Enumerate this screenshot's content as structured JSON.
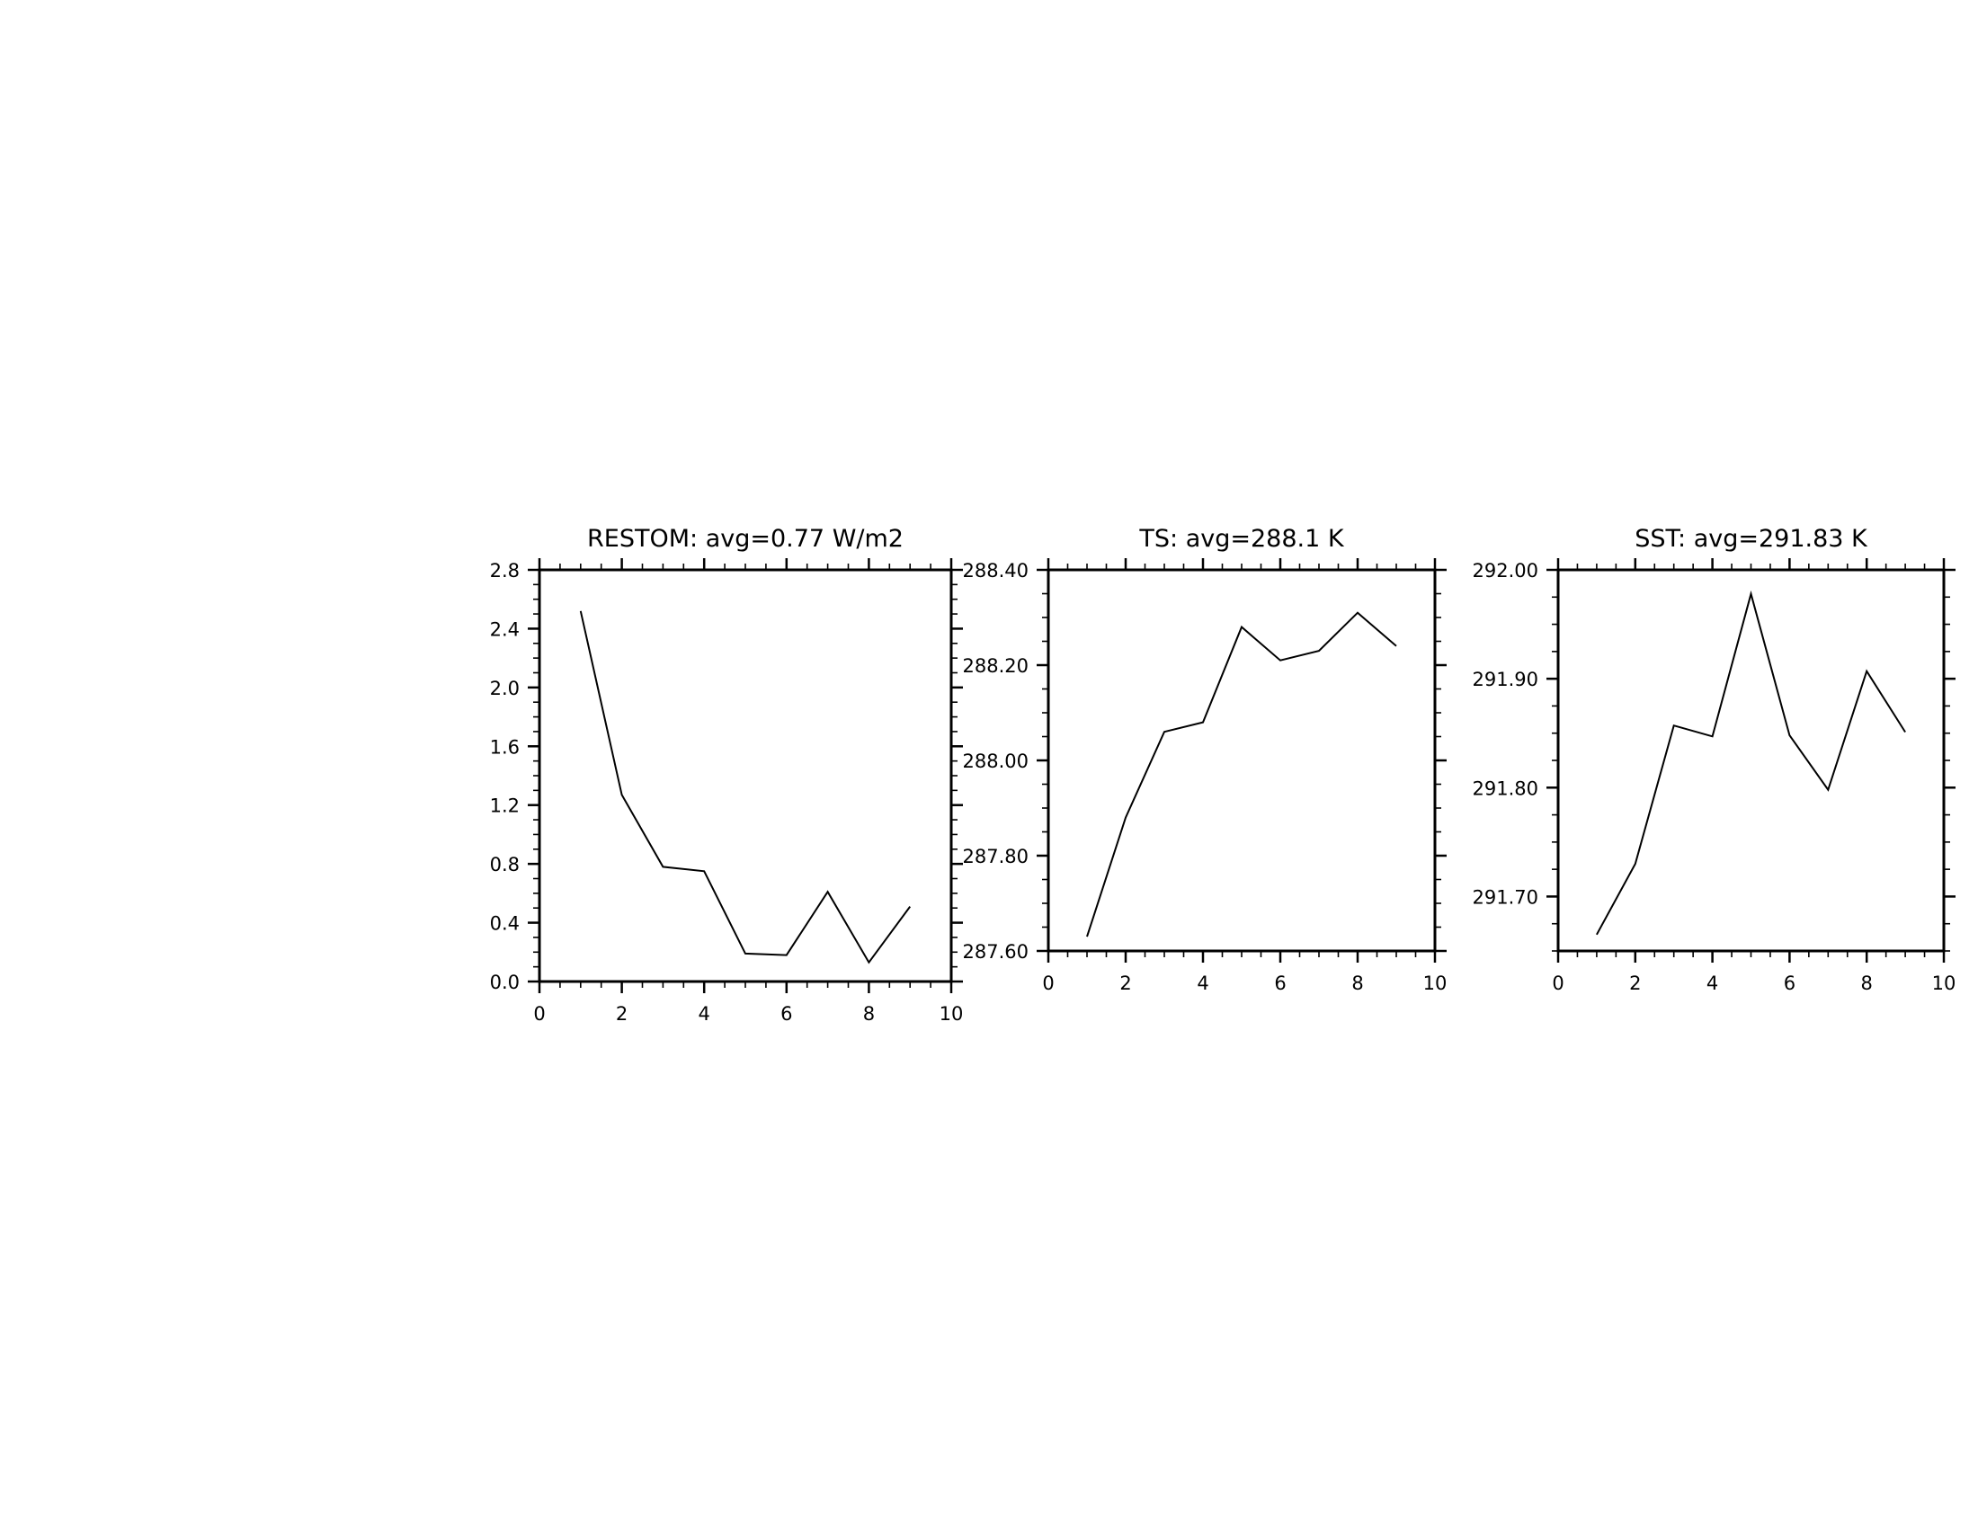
{
  "chart_data": [
    {
      "type": "line",
      "title": "RESTOM: avg=0.77 W/m2",
      "xlabel": "",
      "ylabel": "",
      "xlim": [
        0,
        10
      ],
      "ylim": [
        0.0,
        2.8
      ],
      "x_ticks": [
        0,
        2,
        4,
        6,
        8,
        10
      ],
      "x_tick_labels": [
        "0",
        "2",
        "4",
        "6",
        "8",
        "10"
      ],
      "y_ticks": [
        0.0,
        0.4,
        0.8,
        1.2,
        1.6,
        2.0,
        2.4,
        2.8
      ],
      "y_tick_labels": [
        "0.0",
        "0.4",
        "0.8",
        "1.2",
        "1.6",
        "2.0",
        "2.4",
        "2.8"
      ],
      "grid": false,
      "series": [
        {
          "x": [
            1,
            2,
            3,
            4,
            5,
            6,
            7,
            8,
            9
          ],
          "y": [
            2.52,
            1.27,
            0.78,
            0.75,
            0.19,
            0.18,
            0.61,
            0.13,
            0.51
          ]
        }
      ]
    },
    {
      "type": "line",
      "title": "TS: avg=288.1 K",
      "xlabel": "",
      "ylabel": "",
      "xlim": [
        0,
        10
      ],
      "ylim": [
        287.6,
        288.4
      ],
      "x_ticks": [
        0,
        2,
        4,
        6,
        8,
        10
      ],
      "x_tick_labels": [
        "0",
        "2",
        "4",
        "6",
        "8",
        "10"
      ],
      "y_ticks": [
        287.6,
        287.8,
        288.0,
        288.2,
        288.4
      ],
      "y_tick_labels": [
        "287.60",
        "287.80",
        "288.00",
        "288.20",
        "288.40"
      ],
      "grid": false,
      "series": [
        {
          "x": [
            1,
            2,
            3,
            4,
            5,
            6,
            7,
            8,
            9
          ],
          "y": [
            287.63,
            287.88,
            288.06,
            288.08,
            288.28,
            288.21,
            288.23,
            288.31,
            288.24
          ]
        }
      ]
    },
    {
      "type": "line",
      "title": "SST: avg=291.83 K",
      "xlabel": "",
      "ylabel": "",
      "xlim": [
        0,
        10
      ],
      "ylim": [
        291.65,
        292.0
      ],
      "x_ticks": [
        0,
        2,
        4,
        6,
        8,
        10
      ],
      "x_tick_labels": [
        "0",
        "2",
        "4",
        "6",
        "8",
        "10"
      ],
      "y_ticks": [
        291.7,
        291.8,
        291.9,
        292.0
      ],
      "y_tick_labels": [
        "291.70",
        "291.80",
        "291.90",
        "292.00"
      ],
      "grid": false,
      "series": [
        {
          "x": [
            1,
            2,
            3,
            4,
            5,
            6,
            7,
            8,
            9
          ],
          "y": [
            291.665,
            291.73,
            291.857,
            291.847,
            291.978,
            291.848,
            291.798,
            291.907,
            291.851
          ]
        }
      ]
    }
  ]
}
